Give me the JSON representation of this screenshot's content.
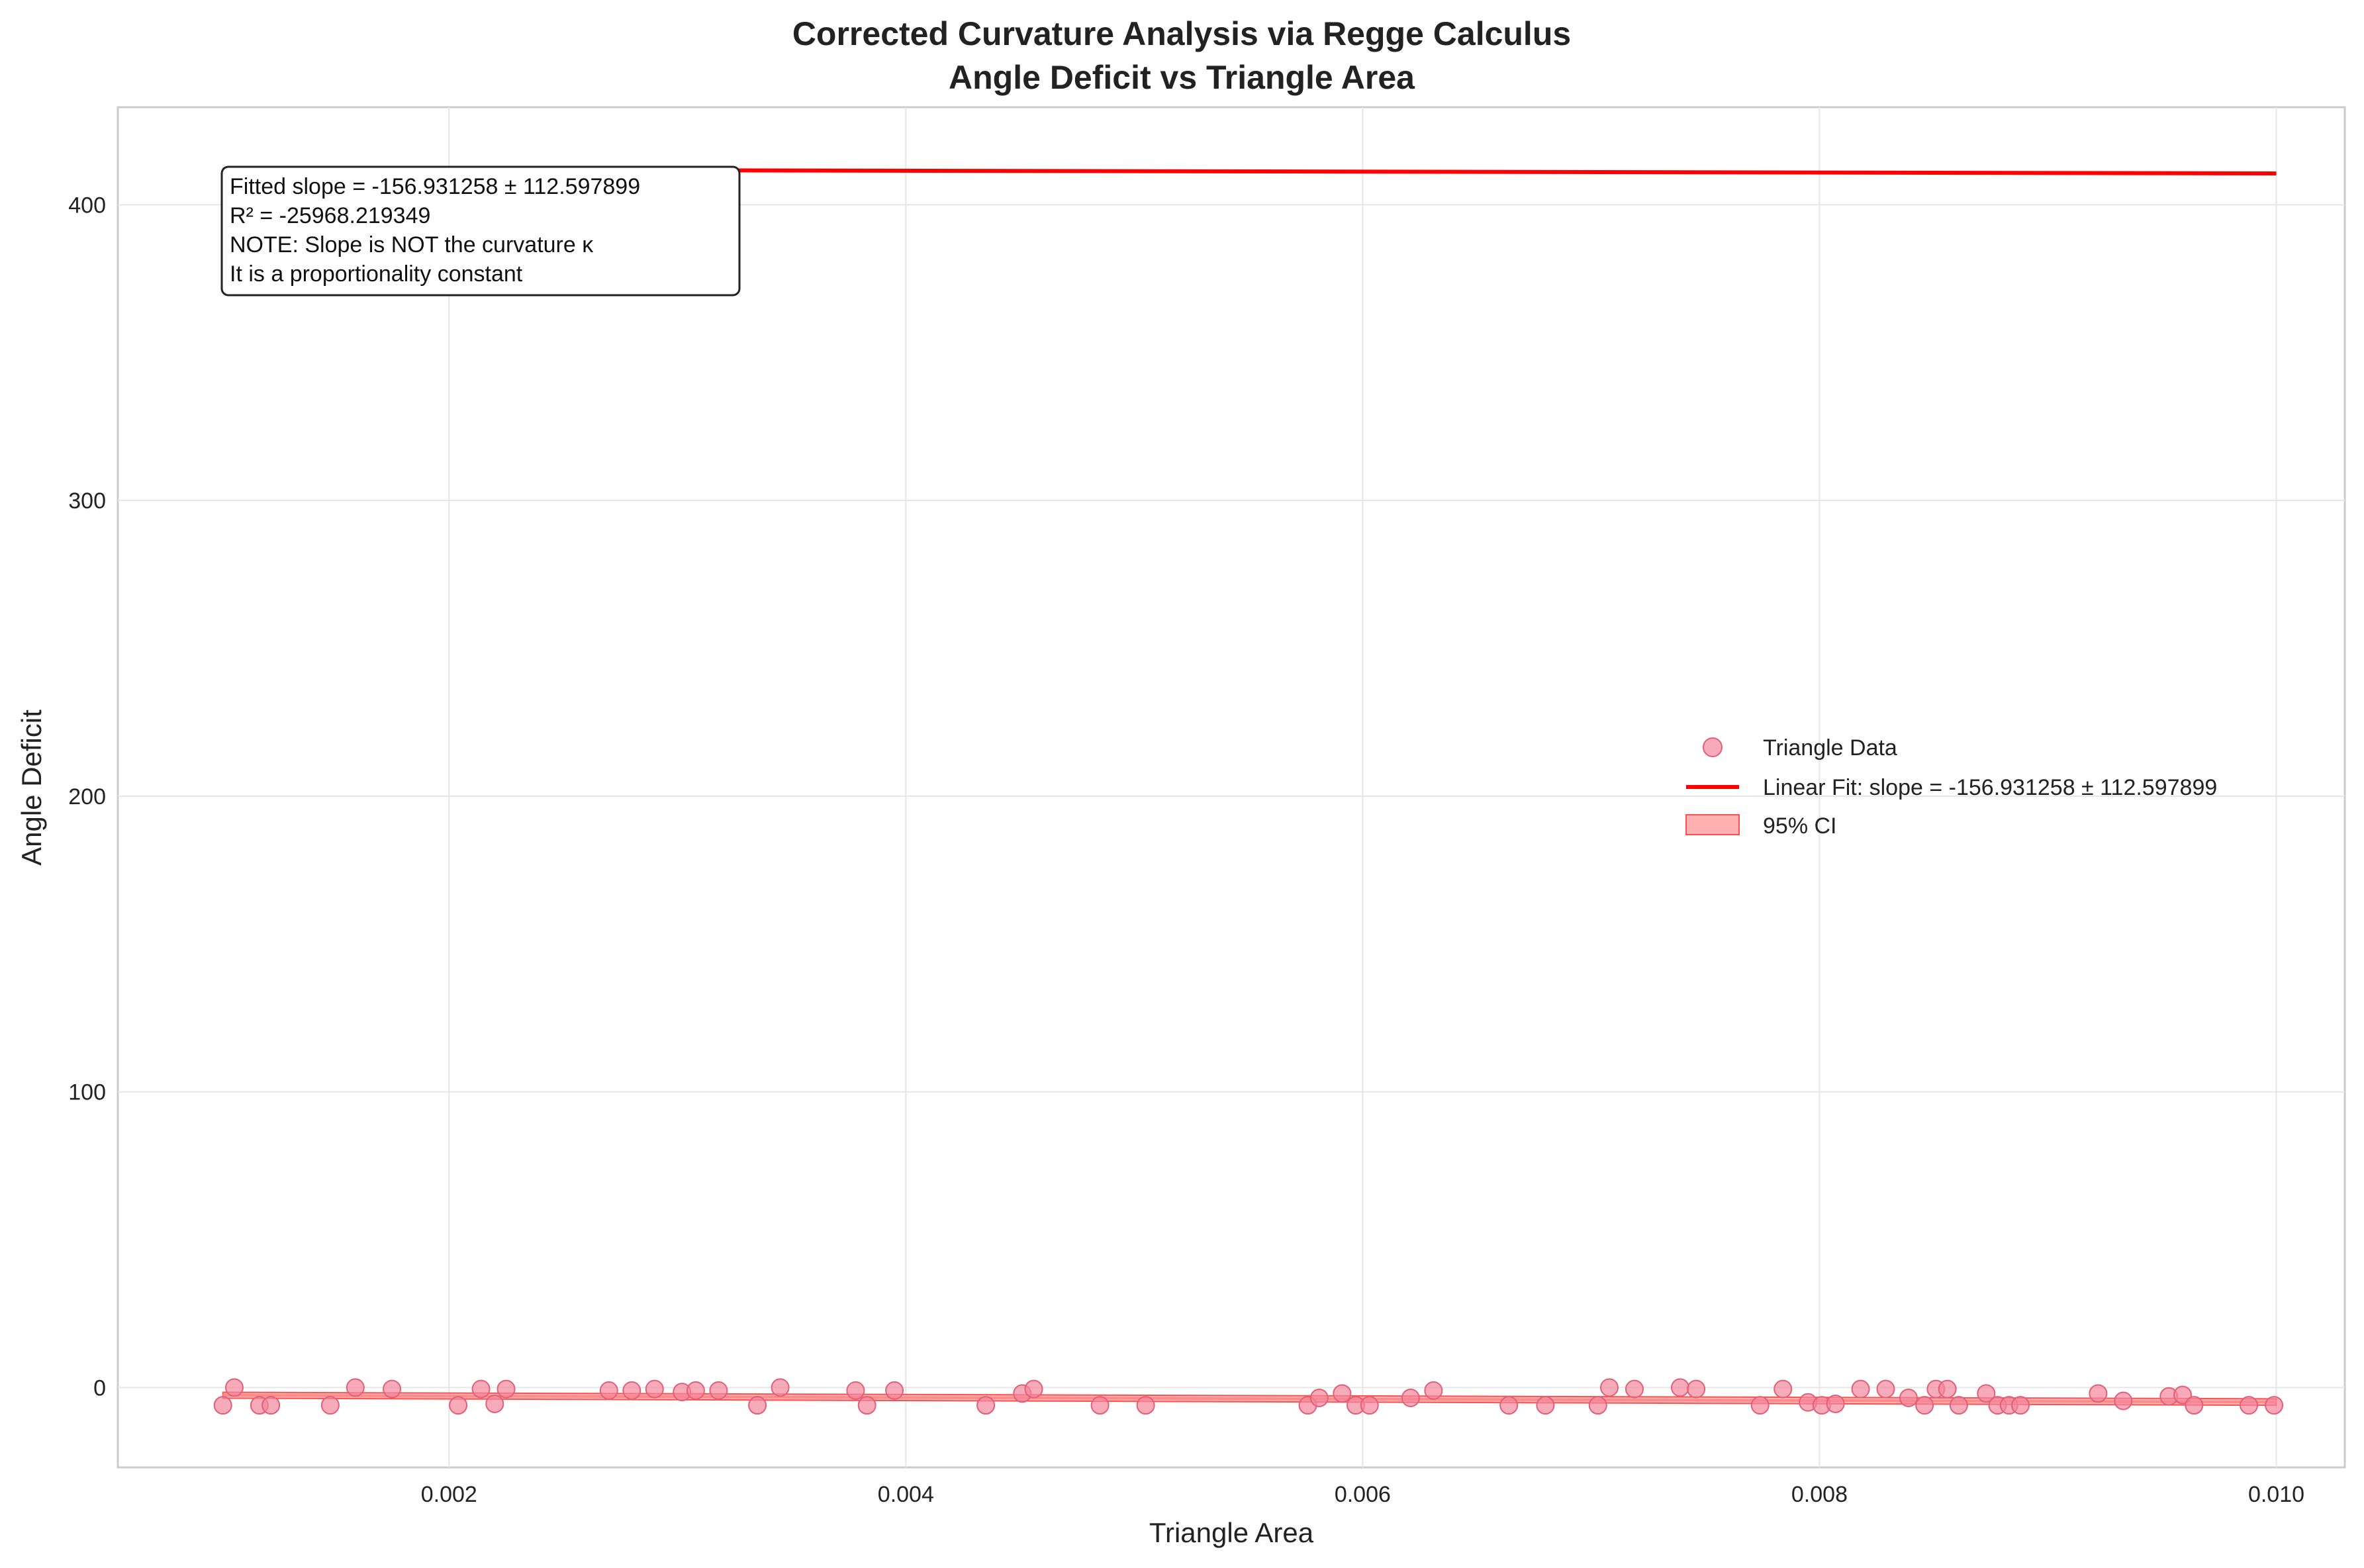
{
  "chart_data": {
    "type": "scatter",
    "title_lines": [
      "Corrected Curvature Analysis via Regge Calculus",
      "Angle Deficit vs Triangle Area"
    ],
    "xlabel": "Triangle Area",
    "ylabel": "Angle Deficit",
    "xlim": [
      0.00055,
      0.0103
    ],
    "ylim": [
      -27,
      433
    ],
    "xticks": [
      0.002,
      0.004,
      0.006,
      0.008,
      0.01
    ],
    "xtick_labels": [
      "0.002",
      "0.004",
      "0.006",
      "0.008",
      "0.010"
    ],
    "yticks": [
      0,
      100,
      200,
      300,
      400
    ],
    "ytick_labels": [
      "0",
      "100",
      "200",
      "300",
      "400"
    ],
    "grid": true,
    "legend_position": "center-right",
    "legend": [
      "Triangle Data",
      "Linear Fit: slope = -156.931258 ± 112.597899",
      "95% CI"
    ],
    "annotation_lines": [
      "Fitted slope = -156.931258 ± 112.597899",
      "R² = -25968.219349",
      "NOTE: Slope is NOT the curvature κ",
      "It is a proportionality constant"
    ],
    "colors": {
      "points": "#f4869b",
      "fit_line": "#ff0000",
      "ci": "#ff7070"
    },
    "fit_line": {
      "x": [
        0.00101,
        0.01
      ],
      "y": [
        412.0,
        410.6
      ]
    },
    "ci_band": {
      "x": [
        0.00101,
        0.01
      ],
      "upper": [
        -1.6,
        -3.8
      ],
      "lower": [
        -3.6,
        -6.0
      ]
    },
    "ci_center": {
      "x": [
        0.00101,
        0.01
      ],
      "y": [
        -2.6,
        -4.9
      ]
    },
    "series": [
      {
        "name": "Triangle Data",
        "x": [
          0.00101,
          0.00106,
          0.00117,
          0.00122,
          0.00148,
          0.00159,
          0.00175,
          0.00204,
          0.00214,
          0.0022,
          0.00225,
          0.0027,
          0.0028,
          0.0029,
          0.00302,
          0.00308,
          0.00318,
          0.00335,
          0.00345,
          0.00378,
          0.00383,
          0.00395,
          0.00435,
          0.00451,
          0.00456,
          0.00485,
          0.00505,
          0.00576,
          0.00581,
          0.00591,
          0.00597,
          0.00603,
          0.00621,
          0.00631,
          0.00664,
          0.0068,
          0.00703,
          0.00708,
          0.00719,
          0.00739,
          0.00746,
          0.00774,
          0.00784,
          0.00795,
          0.00801,
          0.00807,
          0.00818,
          0.00829,
          0.00839,
          0.00846,
          0.00851,
          0.00856,
          0.00861,
          0.00873,
          0.00878,
          0.00883,
          0.00888,
          0.00922,
          0.00933,
          0.00953,
          0.00959,
          0.00964,
          0.00988,
          0.00999
        ],
        "y": [
          -6,
          0,
          -6,
          -6,
          -6,
          0,
          -0.5,
          -6,
          -0.5,
          -5.5,
          -0.5,
          -1,
          -1,
          -0.5,
          -1.5,
          -1,
          -1,
          -6,
          0,
          -1,
          -6,
          -1,
          -6,
          -2,
          -0.5,
          -6,
          -6,
          -6,
          -3.5,
          -2,
          -6,
          -6,
          -3.5,
          -1,
          -6,
          -6,
          -6,
          0,
          -0.5,
          0,
          -0.5,
          -6,
          -0.5,
          -5,
          -6,
          -5.5,
          -0.5,
          -0.5,
          -3.5,
          -6,
          -0.5,
          -0.5,
          -6,
          -2,
          -6,
          -6,
          -6,
          -2,
          -4.5,
          -3,
          -2.5,
          -6,
          -6,
          -6
        ]
      }
    ]
  }
}
